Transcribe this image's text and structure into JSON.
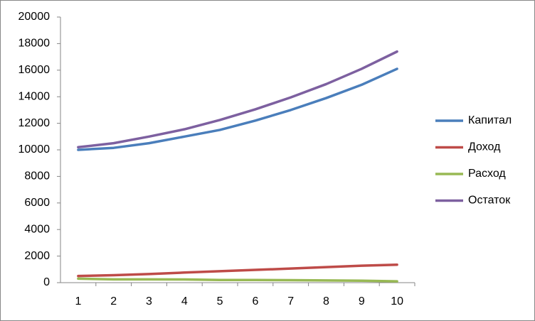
{
  "chart_data": {
    "type": "line",
    "categories": [
      "1",
      "2",
      "3",
      "4",
      "5",
      "6",
      "7",
      "8",
      "9",
      "10"
    ],
    "series": [
      {
        "name": "Капитал",
        "color": "#4a7ebb",
        "values": [
          10000,
          10150,
          10500,
          11000,
          11500,
          12200,
          13000,
          13900,
          14900,
          16100
        ]
      },
      {
        "name": "Доход",
        "color": "#be4b48",
        "values": [
          500,
          560,
          650,
          760,
          860,
          960,
          1060,
          1170,
          1280,
          1350
        ]
      },
      {
        "name": "Расход",
        "color": "#98b954",
        "values": [
          300,
          250,
          250,
          240,
          200,
          200,
          190,
          170,
          150,
          100
        ]
      },
      {
        "name": "Остаток",
        "color": "#7d60a0",
        "values": [
          10200,
          10500,
          11000,
          11550,
          12250,
          13050,
          13950,
          14950,
          16100,
          17400
        ]
      }
    ],
    "ylim": [
      0,
      20000
    ],
    "yticks": [
      0,
      2000,
      4000,
      6000,
      8000,
      10000,
      12000,
      14000,
      16000,
      18000,
      20000
    ],
    "grid": false,
    "legend": "right"
  }
}
